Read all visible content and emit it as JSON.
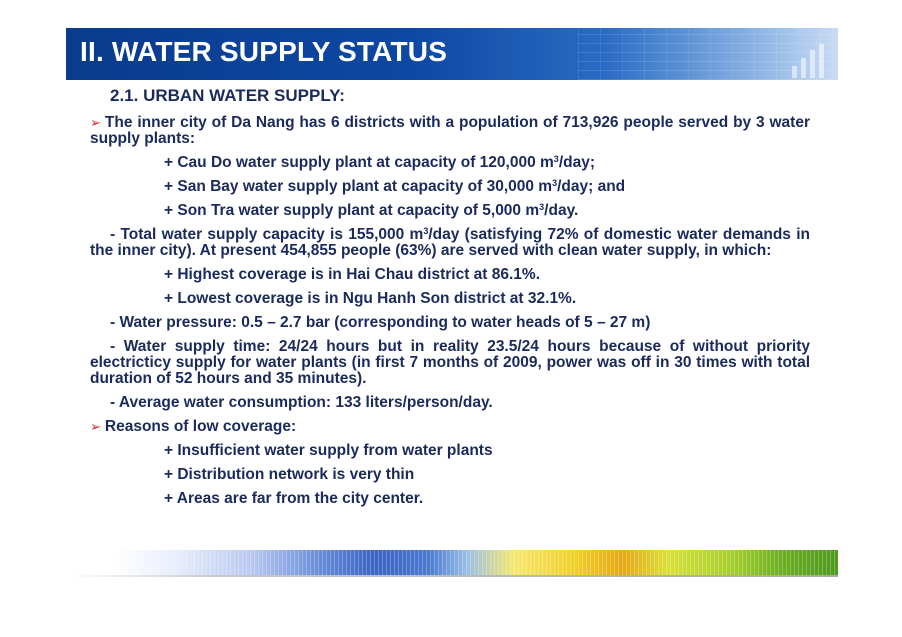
{
  "header": {
    "title": "II. WATER SUPPLY STATUS"
  },
  "subtitle": "2.1. URBAN WATER SUPPLY:",
  "intro": "The inner city of Da Nang has 6 districts with a population of 713,926 people served by 3 water supply plants:",
  "plants": [
    {
      "text": "+ Cau Do water supply plant at capacity of 120,000 m",
      "unit_exp": "3",
      "tail": "/day;"
    },
    {
      "text": "+ San Bay water supply plant at capacity of 30,000 m",
      "unit_exp": "3",
      "tail": "/day; and"
    },
    {
      "text": "+ Son Tra water supply plant at capacity of 5,000 m",
      "unit_exp": "3",
      "tail": "/day."
    }
  ],
  "capacity": {
    "text": "- Total water supply capacity is 155,000 m",
    "unit_exp": "3",
    "tail": "/day (satisfying 72% of domestic water demands in the inner city). At present 454,855 people (63%) are served with clean water supply, in which:"
  },
  "coverage": [
    "+ Highest coverage is in Hai Chau district at 86.1%.",
    "+ Lowest coverage is in Ngu Hanh Son district at 32.1%."
  ],
  "pressure": "- Water pressure: 0.5 – 2.7 bar (corresponding to water heads of 5 – 27 m)",
  "supply_time": "- Water supply time: 24/24 hours but in reality 23.5/24 hours because of without priority electricticy supply for water plants (in first 7 months of 2009, power was off in 30 times with total duration of 52 hours and 35 minutes).",
  "consumption": "- Average water consumption: 133 liters/person/day.",
  "reasons_title": "Reasons of low coverage:",
  "reasons": [
    "+ Insufficient water supply from water plants",
    "+ Distribution network is very thin",
    "+ Areas are far from the city center."
  ],
  "arrow_glyph": "➢",
  "colors": {
    "header": "#0d48a4",
    "text": "#1b2a5c",
    "arrow": "#d62020"
  }
}
